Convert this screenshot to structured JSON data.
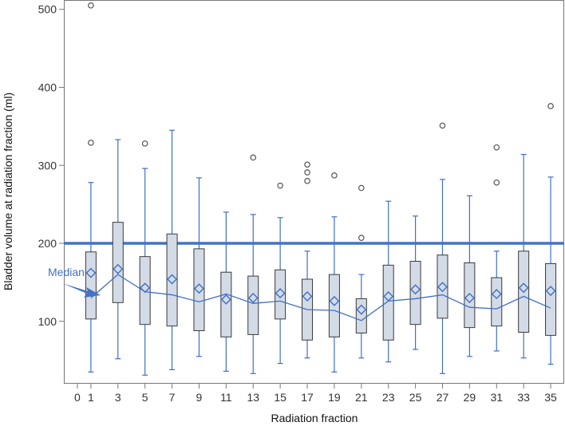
{
  "chart_data": {
    "type": "box",
    "title": "",
    "xlabel": "Radiation fraction",
    "ylabel": "Bladder volume at radiation fraction (ml)",
    "x_ticks": [
      "0",
      "1",
      "3",
      "5",
      "7",
      "9",
      "11",
      "13",
      "15",
      "17",
      "19",
      "21",
      "23",
      "25",
      "27",
      "29",
      "31",
      "33",
      "35"
    ],
    "y_ticks": [
      100,
      200,
      300,
      400,
      500
    ],
    "xlim": [
      -1,
      36
    ],
    "ylim": [
      20,
      512
    ],
    "reference_line": 200,
    "annotation": "Median",
    "colors": {
      "box_fill": "#d3dbe7",
      "box_stroke": "#3a3a3a",
      "whisker": "#3f6fc8",
      "median_line": "#3f6fc8",
      "mean_marker": "#3f6fc8",
      "reference": "#4472c4",
      "outlier": "#555555",
      "axis": "#777777"
    },
    "boxes": [
      {
        "x": 1,
        "min": 35,
        "q1": 103,
        "median": 130,
        "q3": 189,
        "max": 278,
        "mean": 162,
        "outliers": [
          505,
          329
        ]
      },
      {
        "x": 3,
        "min": 52,
        "q1": 124,
        "median": 160,
        "q3": 227,
        "max": 333,
        "mean": 167,
        "outliers": []
      },
      {
        "x": 5,
        "min": 31,
        "q1": 96,
        "median": 138,
        "q3": 183,
        "max": 296,
        "mean": 143,
        "outliers": [
          328
        ]
      },
      {
        "x": 7,
        "min": 38,
        "q1": 94,
        "median": 134,
        "q3": 212,
        "max": 345,
        "mean": 154,
        "outliers": []
      },
      {
        "x": 9,
        "min": 55,
        "q1": 88,
        "median": 125,
        "q3": 193,
        "max": 284,
        "mean": 142,
        "outliers": []
      },
      {
        "x": 11,
        "min": 36,
        "q1": 80,
        "median": 135,
        "q3": 163,
        "max": 240,
        "mean": 128,
        "outliers": []
      },
      {
        "x": 13,
        "min": 33,
        "q1": 83,
        "median": 123,
        "q3": 158,
        "max": 237,
        "mean": 130,
        "outliers": [
          310
        ]
      },
      {
        "x": 15,
        "min": 46,
        "q1": 103,
        "median": 126,
        "q3": 166,
        "max": 233,
        "mean": 136,
        "outliers": [
          274
        ]
      },
      {
        "x": 17,
        "min": 53,
        "q1": 76,
        "median": 115,
        "q3": 154,
        "max": 190,
        "mean": 132,
        "outliers": [
          301,
          291,
          280
        ]
      },
      {
        "x": 19,
        "min": 35,
        "q1": 80,
        "median": 114,
        "q3": 160,
        "max": 234,
        "mean": 126,
        "outliers": [
          287
        ]
      },
      {
        "x": 21,
        "min": 53,
        "q1": 85,
        "median": 101,
        "q3": 129,
        "max": 160,
        "mean": 115,
        "outliers": [
          271,
          207
        ]
      },
      {
        "x": 23,
        "min": 48,
        "q1": 76,
        "median": 126,
        "q3": 172,
        "max": 254,
        "mean": 132,
        "outliers": []
      },
      {
        "x": 25,
        "min": 64,
        "q1": 96,
        "median": 129,
        "q3": 177,
        "max": 235,
        "mean": 141,
        "outliers": []
      },
      {
        "x": 27,
        "min": 33,
        "q1": 104,
        "median": 134,
        "q3": 185,
        "max": 282,
        "mean": 144,
        "outliers": [
          351
        ]
      },
      {
        "x": 29,
        "min": 55,
        "q1": 92,
        "median": 118,
        "q3": 175,
        "max": 261,
        "mean": 130,
        "outliers": []
      },
      {
        "x": 31,
        "min": 62,
        "q1": 94,
        "median": 116,
        "q3": 156,
        "max": 190,
        "mean": 135,
        "outliers": [
          323,
          278
        ]
      },
      {
        "x": 33,
        "min": 53,
        "q1": 86,
        "median": 132,
        "q3": 190,
        "max": 314,
        "mean": 143,
        "outliers": []
      },
      {
        "x": 35,
        "min": 45,
        "q1": 82,
        "median": 117,
        "q3": 174,
        "max": 285,
        "mean": 139,
        "outliers": [
          376
        ]
      }
    ]
  }
}
